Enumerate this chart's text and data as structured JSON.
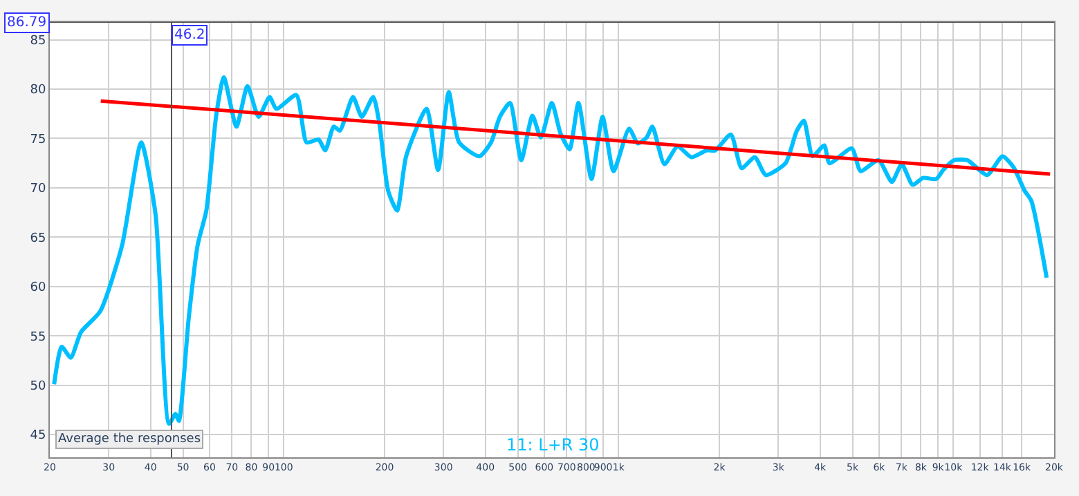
{
  "chart_data": {
    "type": "line",
    "log": "x",
    "xlim": [
      20,
      20000
    ],
    "ylim": [
      42.7,
      86.79
    ],
    "xticks": [
      20,
      30,
      40,
      50,
      60,
      70,
      80,
      90,
      100,
      200,
      300,
      400,
      500,
      600,
      700,
      800,
      900,
      {
        "value": 1000,
        "label": "1k"
      },
      {
        "value": 2000,
        "label": "2k"
      },
      {
        "value": 3000,
        "label": "3k"
      },
      {
        "value": 4000,
        "label": "4k"
      },
      {
        "value": 5000,
        "label": "5k"
      },
      {
        "value": 6000,
        "label": "6k"
      },
      {
        "value": 7000,
        "label": "7k"
      },
      {
        "value": 8000,
        "label": "8k"
      },
      {
        "value": 9000,
        "label": "9k"
      },
      {
        "value": 10000,
        "label": "10k"
      },
      {
        "value": 12000,
        "label": "12k"
      },
      {
        "value": 14000,
        "label": "14k"
      },
      {
        "value": 16000,
        "label": "16k"
      },
      {
        "value": 20000,
        "label": "20k"
      }
    ],
    "yticks": [
      45,
      50,
      55,
      60,
      65,
      70,
      75,
      80,
      85
    ],
    "grid": true,
    "legend": false,
    "marker": "none",
    "line_style": "solid",
    "ref_lines": [
      {
        "axis": "x",
        "value": 46.2,
        "label": "46.2",
        "color": "#555555"
      },
      {
        "axis": "y",
        "value": 86.79,
        "label": "86.79",
        "color": "#555555"
      }
    ],
    "annotations": [
      "Average the responses"
    ],
    "series": [
      {
        "name": "11: L+R 30",
        "color": "#00bfff",
        "x": [
          20.6,
          21.7,
          23.1,
          24.8,
          28.3,
          32.9,
          37.5,
          41.4,
          45.4,
          47.5,
          48.6,
          52.0,
          55.3,
          58.7,
          62.8,
          66.2,
          72.2,
          77.9,
          84.1,
          90.7,
          95.0,
          109,
          117,
          127,
          133,
          141,
          147,
          161,
          171,
          185,
          193,
          205,
          218,
          232,
          267,
          289,
          311,
          334,
          384,
          416,
          442,
          474,
          512,
          553,
          586,
          632,
          671,
          714,
          759,
          830,
          896,
          966,
          1075,
          1142,
          1213,
          1262,
          1371,
          1501,
          1650,
          1835,
          1945,
          2165,
          2331,
          2553,
          2753,
          3155,
          3400,
          3578,
          3800,
          4114,
          4268,
          4973,
          5287,
          5977,
          6553,
          7011,
          7562,
          8113,
          8894,
          9322,
          10055,
          11012,
          12618,
          14024,
          15125,
          16332,
          17093,
          19000
        ],
        "values": [
          50.1,
          53.9,
          52.8,
          55.4,
          57.5,
          64.2,
          74.6,
          67.3,
          46.1,
          47.1,
          46.4,
          56.8,
          64.2,
          67.7,
          77.3,
          81.2,
          76.2,
          80.3,
          77.2,
          79.2,
          78.0,
          79.4,
          74.6,
          74.9,
          73.8,
          76.2,
          75.8,
          79.2,
          77.2,
          79.2,
          76.5,
          69.7,
          67.7,
          73.2,
          78.0,
          71.8,
          79.7,
          74.6,
          73.2,
          74.6,
          77.2,
          78.6,
          72.8,
          77.3,
          75.1,
          78.6,
          75.5,
          73.9,
          78.6,
          70.9,
          77.2,
          71.7,
          76.0,
          74.5,
          75.1,
          76.2,
          72.4,
          74.2,
          73.1,
          73.8,
          73.8,
          75.4,
          72.0,
          73.1,
          71.3,
          72.5,
          75.7,
          76.8,
          73.2,
          74.3,
          72.5,
          74.0,
          71.7,
          72.8,
          70.6,
          72.4,
          70.3,
          71.0,
          70.9,
          71.8,
          72.8,
          72.8,
          71.3,
          73.2,
          72.1,
          69.7,
          68.7,
          60.9
        ]
      },
      {
        "color": "#ff0000",
        "x": [
          28.4,
          19460
        ],
        "values": [
          78.8,
          71.4
        ]
      }
    ]
  }
}
